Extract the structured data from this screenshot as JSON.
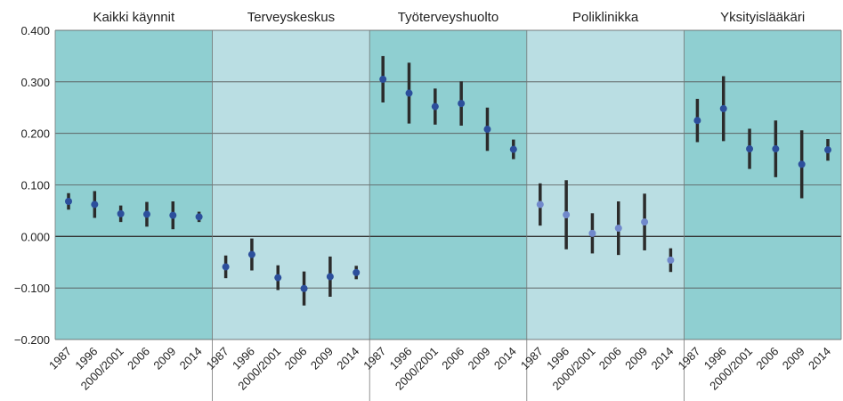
{
  "chart_data": {
    "type": "errorbar",
    "categories": [
      "1987",
      "1996",
      "2000/2001",
      "2006",
      "2009",
      "2014"
    ],
    "ylim": [
      -0.2,
      0.4
    ],
    "yticks": [
      {
        "value": -0.2,
        "label": "−0.200"
      },
      {
        "value": -0.1,
        "label": "−0.100"
      },
      {
        "value": 0,
        "label": "0.000"
      },
      {
        "value": 0.1,
        "label": "0.100"
      },
      {
        "value": 0.2,
        "label": "0.200"
      },
      {
        "value": 0.3,
        "label": "0.300"
      },
      {
        "value": 0.4,
        "label": "0.400"
      }
    ],
    "grid": true,
    "panels": [
      {
        "title": "Kaikki käynnit",
        "background": "#8fcfd1",
        "color": "#2c4f9c",
        "values": [
          0.068,
          0.062,
          0.044,
          0.043,
          0.041,
          0.038
        ],
        "errors": [
          0.016,
          0.026,
          0.016,
          0.024,
          0.027,
          0.01
        ]
      },
      {
        "title": "Terveyskeskus",
        "background": "#badee3",
        "color": "#2c4f9c",
        "values": [
          -0.059,
          -0.035,
          -0.08,
          -0.101,
          -0.078,
          -0.07
        ],
        "errors": [
          0.022,
          0.031,
          0.024,
          0.033,
          0.039,
          0.013
        ]
      },
      {
        "title": "Työterveyshuolto",
        "background": "#8fcfd1",
        "color": "#2c4f9c",
        "values": [
          0.305,
          0.278,
          0.252,
          0.258,
          0.208,
          0.169
        ],
        "errors": [
          0.045,
          0.059,
          0.035,
          0.043,
          0.042,
          0.019
        ]
      },
      {
        "title": "Poliklinikka",
        "background": "#badee3",
        "color": "#7189cc",
        "values": [
          0.062,
          0.042,
          0.006,
          0.016,
          0.028,
          -0.046
        ],
        "errors": [
          0.041,
          0.067,
          0.039,
          0.052,
          0.055,
          0.023
        ]
      },
      {
        "title": "Yksityislääkäri",
        "background": "#8fcfd1",
        "color": "#2c4f9c",
        "values": [
          0.225,
          0.248,
          0.17,
          0.17,
          0.14,
          0.168
        ],
        "errors": [
          0.042,
          0.063,
          0.039,
          0.055,
          0.066,
          0.021
        ]
      }
    ]
  }
}
